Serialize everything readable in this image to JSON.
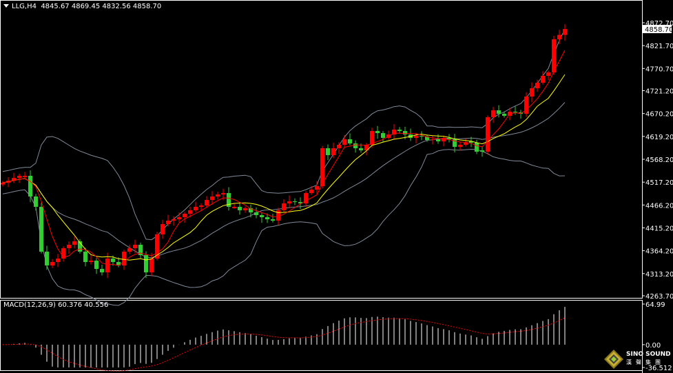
{
  "header": {
    "symbol": "LLG,H4",
    "ohlc": "4845.67 4869.45 4832.56 4858.70"
  },
  "macd_label": {
    "title": "MACD(12,26,9)",
    "values": "60.376 40.556"
  },
  "logo": {
    "name": "SINO SOUND",
    "cn": "漢聲集團"
  },
  "colors": {
    "up": "#ff0000",
    "down": "#32cd32",
    "bands": "#808a98",
    "ma_fast": "#ff0000",
    "ma_slow": "#ffff00",
    "macd_hist": "#ffffff",
    "macd_signal": "#ff0000",
    "background": "#000000",
    "axis": "#ffffff"
  },
  "chart_data": [
    {
      "type": "candlestick",
      "symbol": "LLG",
      "timeframe": "H4",
      "up_color": "red",
      "down_color": "green",
      "indicators": [
        "Bollinger Bands",
        "Moving Average (fast, red)",
        "Moving Average (slow, yellow)"
      ],
      "ylim": [
        4263.7,
        4872.7
      ],
      "y_ticks": [
        "4872.70",
        "4821.70",
        "4770.70",
        "4721.20",
        "4670.20",
        "4619.20",
        "4568.20",
        "4517.20",
        "4466.20",
        "4415.20",
        "4364.20",
        "4313.20",
        "4263.70"
      ],
      "current_price": "4858.70",
      "last_bar": {
        "open": 4845.67,
        "high": 4869.45,
        "low": 4832.56,
        "close": 4858.7
      },
      "close": [
        4515.9,
        4520.5,
        4526.6,
        4531.3,
        4531.3,
        4485.1,
        4462.1,
        4362.1,
        4331.3,
        4339.0,
        4346.7,
        4369.8,
        4377.5,
        4385.2,
        4362.1,
        4339.0,
        4342.1,
        4323.6,
        4315.9,
        4346.7,
        4339.0,
        4331.3,
        4362.1,
        4369.8,
        4377.5,
        4354.4,
        4315.9,
        4346.7,
        4400.5,
        4423.6,
        4431.3,
        4434.4,
        4439.0,
        4446.7,
        4454.4,
        4462.1,
        4465.1,
        4477.4,
        4485.1,
        4489.7,
        4492.8,
        4462.1,
        4462.1,
        4454.4,
        4459.0,
        4449.7,
        4443.6,
        4439.0,
        4434.4,
        4431.3,
        4454.4,
        4469.7,
        4474.4,
        4472.8,
        4469.7,
        4492.8,
        4500.5,
        4508.2,
        4592.8,
        4577.4,
        4592.8,
        4600.5,
        4612.8,
        4603.5,
        4592.8,
        4588.2,
        4600.5,
        4631.2,
        4626.6,
        4615.9,
        4623.5,
        4634.3,
        4631.2,
        4623.5,
        4615.9,
        4620.5,
        4618.9,
        4611.2,
        4612.8,
        4608.2,
        4615.9,
        4612.8,
        4595.9,
        4600.5,
        4605.1,
        4605.1,
        4585.1,
        4585.1,
        4662.0,
        4677.4,
        4669.7,
        4665.1,
        4674.3,
        4672.8,
        4669.7,
        4708.1,
        4726.6,
        4738.9,
        4754.3,
        4762.0,
        4835.8,
        4845.67,
        4858.7
      ]
    },
    {
      "type": "bar",
      "title": "MACD(12,26,9)",
      "macd": 60.376,
      "signal": 40.556,
      "ylim": [
        -36.512,
        64.99
      ],
      "y_ticks": [
        "64.99",
        "0.00",
        "-36.512"
      ]
    }
  ]
}
